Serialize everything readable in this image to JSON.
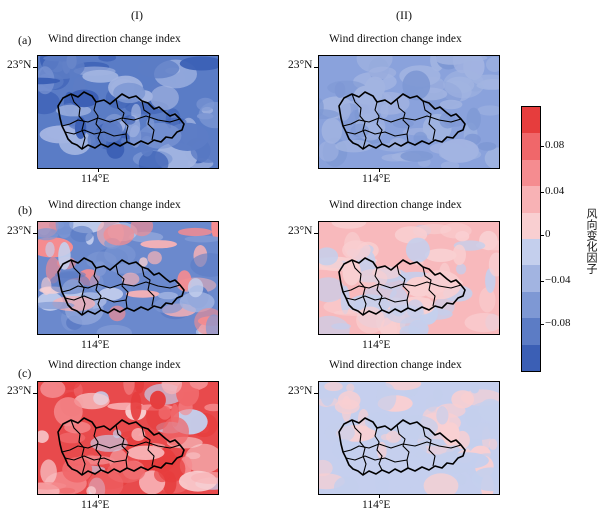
{
  "columns": [
    "(I)",
    "(II)"
  ],
  "rows": [
    "(a)",
    "(b)",
    "(c)"
  ],
  "panel_title": "Wind direction change index",
  "lat_label": "23°N",
  "lon_label": "114°E",
  "colorbar": {
    "title": "风向变化因子",
    "ticks": [
      "0.08",
      "0.04",
      "0",
      "−0.04",
      "−0.08"
    ],
    "colors": [
      "#e63d3d",
      "#f0676a",
      "#f58c90",
      "#f8b2b5",
      "#f9cfd1",
      "#c4cfed",
      "#a2b4e1",
      "#7e98d4",
      "#5c7cc5",
      "#3b5fb5"
    ]
  },
  "chart_data": [
    {
      "type": "heatmap",
      "row": "(a)",
      "column": "(I)",
      "title": "Wind direction change index",
      "dominant": "negative",
      "value_range": [
        -0.1,
        -0.02
      ],
      "base_color": "#5a7cc6"
    },
    {
      "type": "heatmap",
      "row": "(a)",
      "column": "(II)",
      "title": "Wind direction change index",
      "dominant": "negative",
      "value_range": [
        -0.05,
        -0.02
      ],
      "base_color": "#8aa2dc"
    },
    {
      "type": "heatmap",
      "row": "(b)",
      "column": "(I)",
      "title": "Wind direction change index",
      "dominant": "mixed",
      "value_range": [
        -0.08,
        0.06
      ],
      "base_color": "#6b89cd"
    },
    {
      "type": "heatmap",
      "row": "(b)",
      "column": "(II)",
      "title": "Wind direction change index",
      "dominant": "weak positive",
      "value_range": [
        -0.02,
        0.02
      ],
      "base_color": "#f8b9bc"
    },
    {
      "type": "heatmap",
      "row": "(c)",
      "column": "(I)",
      "title": "Wind direction change index",
      "dominant": "positive",
      "value_range": [
        -0.02,
        0.1
      ],
      "base_color": "#e84a4c"
    },
    {
      "type": "heatmap",
      "row": "(c)",
      "column": "(II)",
      "title": "Wind direction change index",
      "dominant": "weak mixed",
      "value_range": [
        -0.02,
        0.02
      ],
      "base_color": "#c5cfee"
    }
  ]
}
